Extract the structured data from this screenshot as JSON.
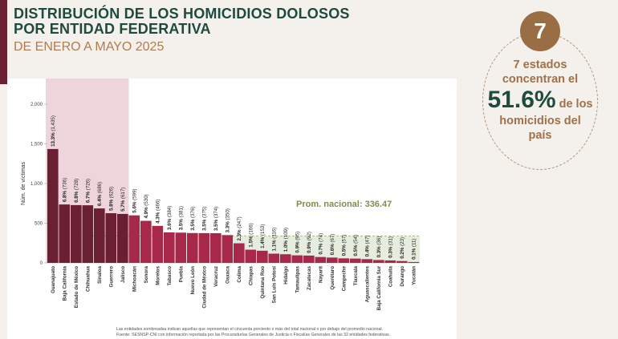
{
  "header": {
    "title_line1": "DISTRIBUCIÓN DE LOS HOMICIDIOS DOLOSOS",
    "title_line2": "POR ENTIDAD FEDERATIVA",
    "subtitle": "DE ENERO A MAYO 2025"
  },
  "callout": {
    "badge": "7",
    "line1": "7 estados",
    "line2": "concentran el",
    "percent": "51.6%",
    "line3": "de los",
    "line4": "homicidios del",
    "line5": "país"
  },
  "footnote": {
    "line1": "Las entidades sombreadas indican aquellas que representan el cincuenta porciento o más del total nacional o por debajo del promedio nacional.",
    "line2": "Fuente: SESNSP-CNI con información reportada por las Procuradurías Generales de Justicia o Fiscalías Generales de las 32 entidades federativas."
  },
  "colors": {
    "top7": "#6b1f33",
    "above_avg": "#a8284a",
    "below_avg": "#a8284a",
    "highlight_region": "#e8c6cf",
    "avg_region": "#e6eddf",
    "avg_label": "#7d8f4e"
  },
  "chart_data": {
    "type": "bar",
    "ylabel": "Núm. de víctimas",
    "ylim": [
      0,
      2000
    ],
    "yticks": [
      "0",
      "500",
      "1,000",
      "1,500",
      "2,000"
    ],
    "average": 336.47,
    "average_label": "Prom. nacional: 336.47",
    "categories": [
      "Guanajuato",
      "Baja California",
      "Estado de México",
      "Chihuahua",
      "Sinaloa",
      "Guerrero",
      "Jalisco",
      "Michoacán",
      "Sonora",
      "Morelos",
      "Tabasco",
      "Puebla",
      "Nuevo León",
      "Ciudad de México",
      "Veracruz",
      "Oaxaca",
      "Colima",
      "Chiapas",
      "Quintana Roo",
      "San Luis Potosí",
      "Hidalgo",
      "Tamaulipas",
      "Zacatecas",
      "Nayarit",
      "Querétaro",
      "Campeche",
      "Tlaxcala",
      "Aguascalientes",
      "Baja California Sur",
      "Coahuila",
      "Durango",
      "Yucatán"
    ],
    "values": [
      1435,
      736,
      728,
      726,
      686,
      626,
      617,
      599,
      530,
      466,
      384,
      381,
      376,
      375,
      374,
      350,
      247,
      166,
      153,
      116,
      109,
      95,
      92,
      74,
      67,
      57,
      54,
      47,
      36,
      31,
      23,
      11
    ],
    "labels_pct": [
      "13.3%",
      "6.8%",
      "6.8%",
      "6.7%",
      "6.4%",
      "5.8%",
      "5.7%",
      "5.6%",
      "4.9%",
      "4.3%",
      "3.6%",
      "3.5%",
      "3.5%",
      "3.5%",
      "3.5%",
      "3.3%",
      "2.3%",
      "1.5%",
      "1.4%",
      "1.1%",
      "1.0%",
      "0.9%",
      "0.9%",
      "0.7%",
      "0.6%",
      "0.5%",
      "0.5%",
      "0.4%",
      "0.3%",
      "0.3%",
      "0.2%",
      "0.1%"
    ],
    "labels_count": [
      "(1,435)",
      "(736)",
      "(728)",
      "(726)",
      "(686)",
      "(626)",
      "(617)",
      "(599)",
      "(530)",
      "(466)",
      "(384)",
      "(381)",
      "(376)",
      "(375)",
      "(374)",
      "(350)",
      "(247)",
      "(166)",
      "(153)",
      "(116)",
      "(109)",
      "(95)",
      "(92)",
      "(74)",
      "(67)",
      "(57)",
      "(54)",
      "(47)",
      "(36)",
      "(31)",
      "(23)",
      "(11)"
    ],
    "highlighted_count": 7
  }
}
